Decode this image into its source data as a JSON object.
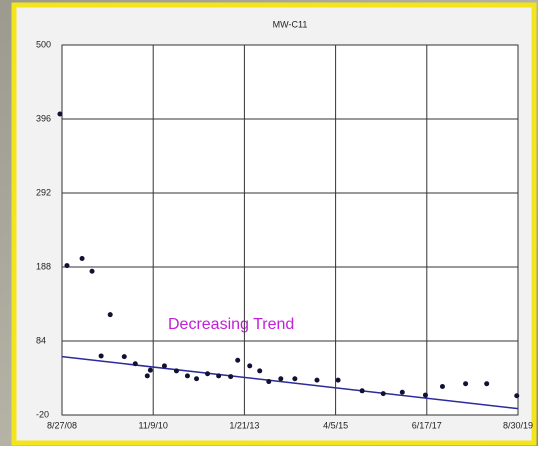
{
  "chart_data": {
    "type": "scatter",
    "title": "MW-C11",
    "annotation": "Decreasing Trend",
    "x": [
      "2008-08-09",
      "2008-10-10",
      "2009-02-20",
      "2009-05-19",
      "2009-08-07",
      "2009-10-26",
      "2010-02-27",
      "2010-06-04",
      "2010-09-18",
      "2010-10-15",
      "2011-02-16",
      "2011-06-02",
      "2011-09-07",
      "2011-11-26",
      "2012-03-02",
      "2012-06-08",
      "2012-09-22",
      "2012-11-23",
      "2013-03-09",
      "2013-06-05",
      "2013-08-24",
      "2013-12-08",
      "2014-04-11",
      "2014-10-23",
      "2015-04-27",
      "2015-11-25",
      "2016-05-29",
      "2016-11-13",
      "2017-06-05",
      "2017-11-02",
      "2018-05-25",
      "2018-11-27",
      "2019-08-19"
    ],
    "values": [
      403,
      190,
      200,
      182,
      63,
      121,
      62,
      52,
      35,
      43,
      49,
      42,
      35,
      31,
      38,
      35,
      34,
      57,
      49,
      42,
      27,
      31,
      31,
      29,
      29,
      14,
      10,
      12,
      8,
      20,
      24,
      24,
      7
    ],
    "color": "#111133",
    "trend": {
      "x": [
        "2008-08-27",
        "2019-08-30"
      ],
      "values": [
        62,
        -11
      ],
      "color": "#2b2b9c"
    },
    "xlim": [
      "2008-08-27",
      "2019-08-30"
    ],
    "xticks": [
      {
        "value": "2008-08-27",
        "label": "8/27/08"
      },
      {
        "value": "2010-11-09",
        "label": "11/9/10"
      },
      {
        "value": "2013-01-21",
        "label": "1/21/13"
      },
      {
        "value": "2015-04-05",
        "label": "4/5/15"
      },
      {
        "value": "2017-06-17",
        "label": "6/17/17"
      },
      {
        "value": "2019-08-30",
        "label": "8/30/19"
      }
    ],
    "ylim": [
      -20,
      500
    ],
    "yticks": [
      -20,
      84,
      188,
      292,
      396,
      500
    ],
    "grid": true
  }
}
